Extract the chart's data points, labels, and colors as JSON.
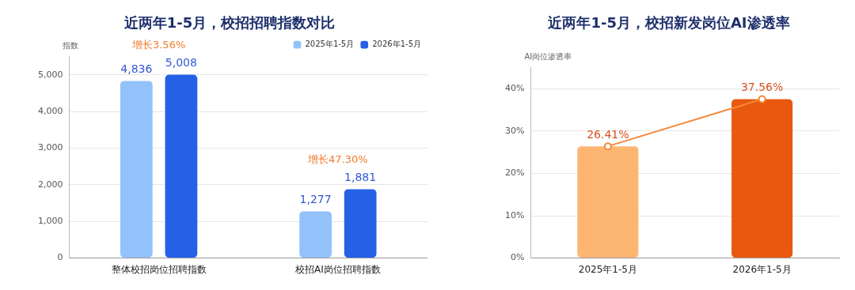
{
  "chart_data": [
    {
      "type": "bar",
      "title": "近两年1-5月，校招招聘指数对比",
      "ylabel": "指数",
      "categories": [
        "整体校招岗位招聘指数",
        "校招AI岗位招聘指数"
      ],
      "series": [
        {
          "name": "2025年1-5月",
          "color": "#93c2fb",
          "values": [
            4836,
            1277
          ],
          "value_labels": [
            "4,836",
            "1,277"
          ]
        },
        {
          "name": "2026年1-5月",
          "color": "#2561e6",
          "values": [
            5008,
            1881
          ],
          "value_labels": [
            "5,008",
            "1,881"
          ]
        }
      ],
      "ylim": [
        0,
        5500
      ],
      "yticks": [
        0,
        {
          "value": 1000,
          "label": "1,000"
        },
        {
          "value": 2000,
          "label": "2,000"
        },
        {
          "value": 3000,
          "label": "3,000"
        },
        {
          "value": 4000,
          "label": "4,000"
        },
        {
          "value": 5000,
          "label": "5,000"
        }
      ],
      "annotations": [
        "增长3.56%",
        "增长47.30%"
      ],
      "grid": "y",
      "legend": "top right"
    },
    {
      "type": "bar",
      "title": "近两年1-5月，校招新发岗位AI渗透率",
      "ylabel": "AI岗位渗透率",
      "categories": [
        "2025年1-5月",
        "2026年1-5月"
      ],
      "series": [
        {
          "type": "bar",
          "colors": [
            "#fdb672",
            "#e8590f"
          ],
          "values": [
            26.41,
            37.56
          ]
        },
        {
          "type": "line",
          "color": "#f5883a",
          "values": [
            26.41,
            37.56
          ],
          "value_labels": [
            "26.41%",
            "37.56%"
          ]
        }
      ],
      "ylim": [
        0,
        45
      ],
      "yticks": [
        {
          "value": 0,
          "label": "0%"
        },
        {
          "value": 10,
          "label": "10%"
        },
        {
          "value": 20,
          "label": "20%"
        },
        {
          "value": 30,
          "label": "30%"
        },
        {
          "value": 40,
          "label": "40%"
        }
      ],
      "marker": "circle",
      "grid": "y",
      "legend": false
    }
  ]
}
